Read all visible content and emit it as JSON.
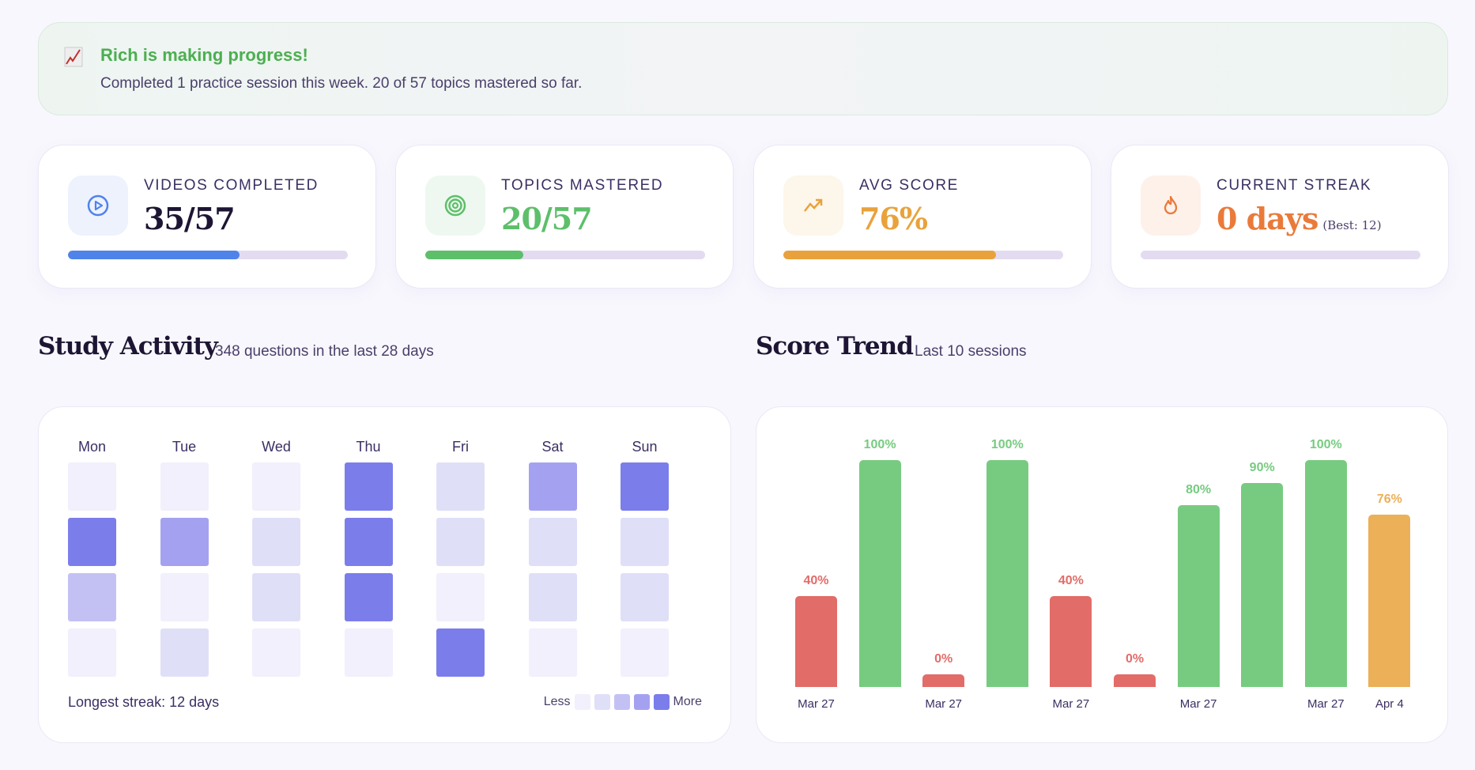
{
  "banner": {
    "icon": "chart-increasing-icon",
    "title": "Rich is making progress!",
    "subtitle": "Completed 1 practice session this week. 20 of 57 topics mastered so far."
  },
  "stats": [
    {
      "label": "VIDEOS COMPLETED",
      "value": "35/57",
      "progress": 0.614,
      "icon": "play-circle-icon",
      "color": "#4f83ea",
      "bg": "#edf2fd",
      "value_color": "#1d1533"
    },
    {
      "label": "TOPICS MASTERED",
      "value": "20/57",
      "progress": 0.351,
      "icon": "target-icon",
      "color": "#5dbf6a",
      "bg": "#eef8f0",
      "value_color": "#5dbf6a"
    },
    {
      "label": "AVG SCORE",
      "value": "76%",
      "progress": 0.76,
      "icon": "trending-up-icon",
      "color": "#e9a23b",
      "bg": "#fdf6ea",
      "value_color": "#e9a23b"
    },
    {
      "label": "CURRENT STREAK",
      "value": "0 days",
      "best": "(Best: 12)",
      "progress": 0,
      "icon": "flame-icon",
      "color": "#ea7a3a",
      "bg": "#fdf1ea",
      "value_color": "#ea7a3a"
    }
  ],
  "activity": {
    "title": "Study Activity",
    "subtitle": "348 questions in the last 28 days",
    "days": [
      "Mon",
      "Tue",
      "Wed",
      "Thu",
      "Fri",
      "Sat",
      "Sun"
    ],
    "levels": [
      [
        0,
        0,
        0,
        4,
        1,
        3,
        4
      ],
      [
        4,
        3,
        1,
        4,
        1,
        1,
        1
      ],
      [
        2,
        0,
        1,
        4,
        0,
        1,
        1
      ],
      [
        0,
        1,
        0,
        0,
        4,
        0,
        0
      ]
    ],
    "level_colors": [
      "#f1f0fc",
      "#e0dff8",
      "#c3c1f4",
      "#a4a2f0",
      "#7b7deb"
    ],
    "footer": "Longest streak: 12 days",
    "legend_less": "Less",
    "legend_more": "More"
  },
  "trend": {
    "title": "Score Trend",
    "subtitle": "Last 10 sessions"
  },
  "chart_data": {
    "type": "bar",
    "title": "Score Trend",
    "ylim": [
      0,
      100
    ],
    "values": [
      40,
      100,
      0,
      100,
      40,
      0,
      80,
      90,
      100,
      76
    ],
    "data_labels": [
      "40%",
      "100%",
      "0%",
      "100%",
      "40%",
      "0%",
      "80%",
      "90%",
      "100%",
      "76%"
    ],
    "categories": [
      "Mar 27",
      "",
      "Mar 27",
      "",
      "Mar 27",
      "",
      "Mar 27",
      "",
      "Mar 27",
      "Apr 4"
    ],
    "colors": {
      "low": "#e26c68",
      "high": "#77cb80",
      "avg": "#ebb058"
    }
  }
}
